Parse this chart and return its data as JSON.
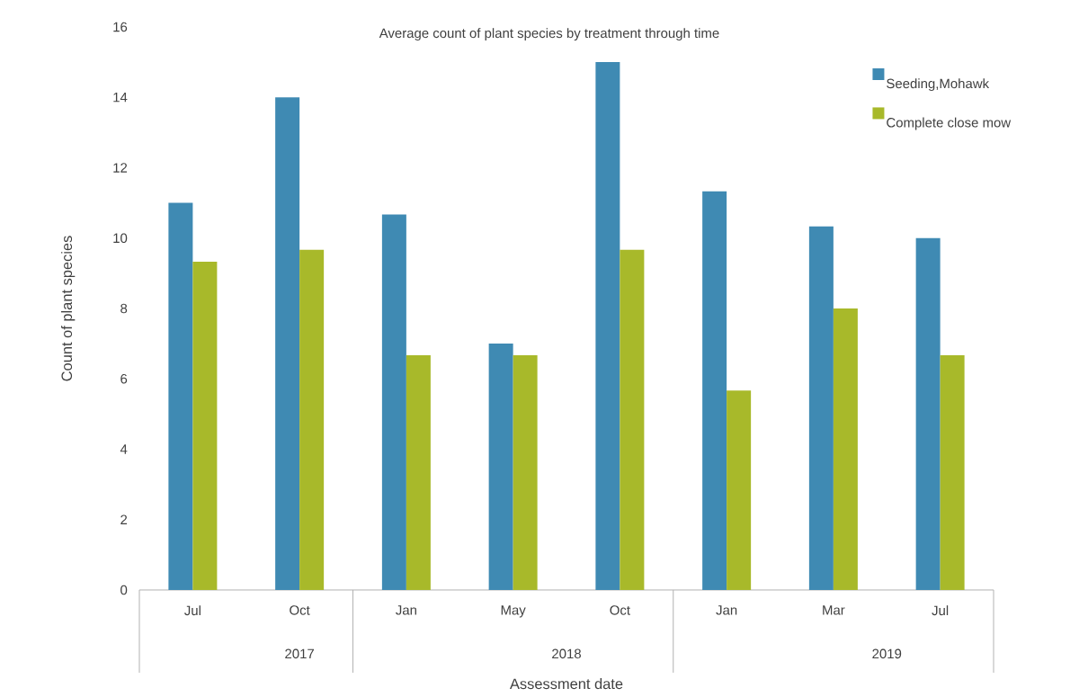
{
  "chart_data": {
    "type": "bar",
    "title": "Average count of plant species by treatment through time",
    "xlabel": "Assessment date",
    "ylabel": "Count of plant species",
    "categories": [
      "Jul",
      "Oct",
      "Jan",
      "May",
      "Oct",
      "Jan",
      "Mar",
      "Jul"
    ],
    "series": [
      {
        "name": "Seeding,Mohawk",
        "color": "#3f8ab3",
        "values": [
          11,
          14,
          10.67,
          7,
          15,
          11.33,
          10.33,
          10
        ]
      },
      {
        "name": "Complete close mow",
        "color": "#a8b92a",
        "values": [
          9.33,
          9.67,
          6.67,
          6.67,
          9.67,
          5.67,
          8,
          6.67
        ]
      }
    ],
    "annotations": [
      "2017",
      "2018",
      "2019"
    ],
    "ylim": [
      0,
      16
    ],
    "yticks": [
      0,
      2,
      4,
      6,
      8,
      10,
      12,
      14,
      16
    ],
    "grid": false,
    "legend": "top right"
  }
}
